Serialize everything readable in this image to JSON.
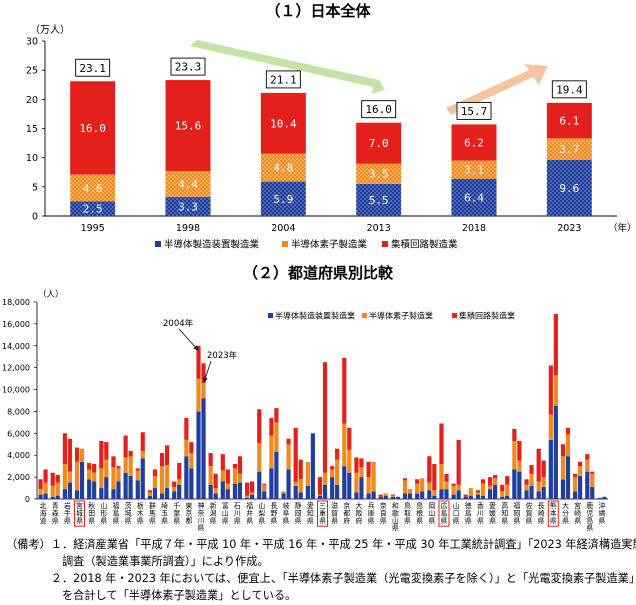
{
  "chart_data": [
    {
      "type": "bar",
      "stacked": true,
      "title": "（１）日本全体",
      "yunit": "（万人）",
      "xunit": "（年）",
      "ylim": [
        0,
        30
      ],
      "yticks": [
        "0",
        "5",
        "10",
        "15",
        "20",
        "25",
        "30"
      ],
      "categories": [
        "1995",
        "1998",
        "2004",
        "2013",
        "2018",
        "2023"
      ],
      "totals": [
        "23.1",
        "23.3",
        "21.1",
        "16.0",
        "15.7",
        "19.4"
      ],
      "series": [
        {
          "name": "半導体製造装置製造業",
          "color": "#1f3e9e",
          "values": [
            2.5,
            3.3,
            5.9,
            5.5,
            6.4,
            9.6
          ],
          "labels": [
            "2.5",
            "3.3",
            "5.9",
            "5.5",
            "6.4",
            "9.6"
          ]
        },
        {
          "name": "半導体素子製造業",
          "color": "#f08a1c",
          "values": [
            4.6,
            4.4,
            4.8,
            3.5,
            3.1,
            3.7
          ],
          "labels": [
            "4.6",
            "4.4",
            "4.8",
            "3.5",
            "3.1",
            "3.7"
          ]
        },
        {
          "name": "集積回路製造業",
          "color": "#e3201b",
          "values": [
            16.0,
            15.6,
            10.4,
            7.0,
            6.2,
            6.1
          ],
          "labels": [
            "16.0",
            "15.6",
            "10.4",
            "7.0",
            "6.2",
            "6.1"
          ]
        }
      ]
    },
    {
      "type": "bar",
      "stacked": true,
      "title": "（２）都道府県別比較",
      "yunit": "（人）",
      "ylim": [
        0,
        18000
      ],
      "yticks": [
        "0",
        "2,000",
        "4,000",
        "6,000",
        "8,000",
        "10,000",
        "12,000",
        "14,000",
        "16,000",
        "18,000"
      ],
      "years": [
        "2004年",
        "2023年"
      ],
      "prefectures": [
        "北海道",
        "青森県",
        "岩手県",
        "宮城県",
        "秋田県",
        "山形県",
        "福島県",
        "茨城県",
        "栃木県",
        "群馬県",
        "埼玉県",
        "千葉県",
        "東京都",
        "神奈川県",
        "新潟県",
        "富山県",
        "石川県",
        "福井県",
        "山梨県",
        "長野県",
        "岐阜県",
        "静岡県",
        "愛知県",
        "三重県",
        "滋賀県",
        "京都府",
        "大阪府",
        "兵庫県",
        "奈良県",
        "和歌山県",
        "鳥取県",
        "島根県",
        "岡山県",
        "広島県",
        "山口県",
        "徳島県",
        "香川県",
        "愛媛県",
        "高知県",
        "福岡県",
        "佐賀県",
        "長崎県",
        "熊本県",
        "大分県",
        "宮崎県",
        "鹿児島県",
        "沖縄県"
      ],
      "highlighted": [
        "宮城県",
        "三重県",
        "広島県",
        "熊本県"
      ],
      "annotations": [
        "2004年",
        "2023年"
      ],
      "series": [
        {
          "name": "半導体製造装置製造業",
          "color": "#1f3e9e"
        },
        {
          "name": "半導体素子製造業",
          "color": "#f08a1c"
        },
        {
          "name": "集積回路製造業",
          "color": "#e3201b"
        }
      ],
      "data_2004": [
        [
          400,
          500,
          900
        ],
        [
          200,
          1000,
          1200
        ],
        [
          900,
          2300,
          2800
        ],
        [
          800,
          2600,
          1300
        ],
        [
          1800,
          900,
          600
        ],
        [
          1000,
          1800,
          2500
        ],
        [
          900,
          2000,
          1000
        ],
        [
          2400,
          1400,
          2000
        ],
        [
          1700,
          900,
          200
        ],
        [
          300,
          300,
          200
        ],
        [
          500,
          2500,
          1200
        ],
        [
          700,
          400,
          500
        ],
        [
          3900,
          1500,
          2000
        ],
        [
          8000,
          3000,
          3000
        ],
        [
          1300,
          1700,
          1200
        ],
        [
          1600,
          1000,
          1500
        ],
        [
          1400,
          1400,
          400
        ],
        [
          100,
          200,
          1200
        ],
        [
          2500,
          2600,
          3100
        ],
        [
          2800,
          3000,
          1600
        ],
        [
          500,
          200,
          0
        ],
        [
          1200,
          400,
          4900
        ],
        [
          1200,
          2200,
          0
        ],
        [
          300,
          100,
          1600
        ],
        [
          2000,
          700,
          300
        ],
        [
          3000,
          3900,
          6000
        ],
        [
          600,
          1800,
          1400
        ],
        [
          500,
          1500,
          1400
        ],
        [
          200,
          0,
          200
        ],
        [
          200,
          100,
          100
        ],
        [
          500,
          1200,
          200
        ],
        [
          500,
          900,
          400
        ],
        [
          800,
          700,
          2400
        ],
        [
          900,
          2300,
          3700
        ],
        [
          400,
          800,
          200
        ],
        [
          200,
          0,
          200
        ],
        [
          400,
          200,
          200
        ],
        [
          900,
          300,
          800
        ],
        [
          200,
          500,
          600
        ],
        [
          2700,
          2600,
          1100
        ],
        [
          800,
          500,
          500
        ],
        [
          700,
          900,
          3000
        ],
        [
          5400,
          2300,
          4500
        ],
        [
          1800,
          2100,
          1100
        ],
        [
          700,
          1300,
          300
        ],
        [
          2500,
          1100,
          500
        ],
        [
          100,
          0,
          0
        ]
      ],
      "data_2023": [
        [
          500,
          1000,
          1200
        ],
        [
          300,
          1200,
          700
        ],
        [
          1500,
          1000,
          3000
        ],
        [
          3400,
          1200,
          0
        ],
        [
          1600,
          800,
          800
        ],
        [
          2000,
          1600,
          1600
        ],
        [
          1600,
          1200,
          200
        ],
        [
          2100,
          1800,
          500
        ],
        [
          3700,
          700,
          1700
        ],
        [
          1000,
          1100,
          600
        ],
        [
          1000,
          2100,
          1800
        ],
        [
          1300,
          500,
          1500
        ],
        [
          2800,
          1400,
          1000
        ],
        [
          9200,
          1400,
          1800
        ],
        [
          500,
          500,
          1300
        ],
        [
          900,
          500,
          1300
        ],
        [
          1500,
          800,
          1600
        ],
        [
          400,
          200,
          1000
        ],
        [
          700,
          600,
          100
        ],
        [
          4300,
          2700,
          1300
        ],
        [
          2700,
          2300,
          500
        ],
        [
          600,
          1200,
          1800
        ],
        [
          6000,
          0,
          0
        ],
        [
          1300,
          1100,
          10100
        ],
        [
          1300,
          2300,
          1000
        ],
        [
          2400,
          2100,
          2000
        ],
        [
          2000,
          900,
          800
        ],
        [
          700,
          2700,
          0
        ],
        [
          300,
          200,
          0
        ],
        [
          200,
          0,
          0
        ],
        [
          500,
          400,
          0
        ],
        [
          700,
          1200,
          0
        ],
        [
          300,
          500,
          2400
        ],
        [
          900,
          700,
          700
        ],
        [
          800,
          500,
          4100
        ],
        [
          300,
          700,
          0
        ],
        [
          300,
          1100,
          400
        ],
        [
          1300,
          600,
          300
        ],
        [
          300,
          1000,
          800
        ],
        [
          2500,
          1000,
          1800
        ],
        [
          1200,
          1100,
          800
        ],
        [
          1100,
          900,
          1500
        ],
        [
          8500,
          2800,
          5600
        ],
        [
          3900,
          2000,
          600
        ],
        [
          2100,
          900,
          400
        ],
        [
          1100,
          1200,
          200
        ],
        [
          200,
          0,
          0
        ]
      ]
    }
  ],
  "notes": [
    "（備考）１．経済産業省「平成７年・平成 10 年・平成 16 年・平成 25 年・平成 30 年工業統計調査」「2023 年経済構造実態",
    "　　　　　調査（製造業事業所調査）」により作成。",
    "　　　　２．2018 年・2023 年においては、便宜上、「半導体素子製造業（光電変換素子を除く）」と「光電変換素子製造業」",
    "　　　　　を合計して「半導体素子製造業」としている。"
  ]
}
